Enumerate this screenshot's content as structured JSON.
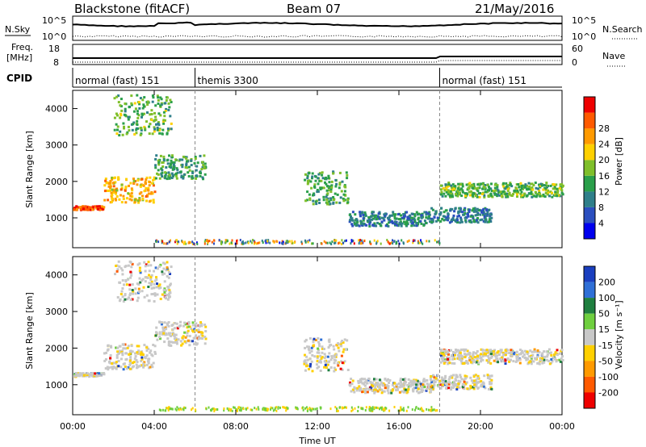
{
  "header": {
    "radar": "Blackstone (fitACF)",
    "beam": "Beam 07",
    "date": "21/May/2016"
  },
  "noise_panel": {
    "left_label": "N.Sky",
    "right_label": "N.Search",
    "left_ticks": [
      "10^5",
      "10^0"
    ],
    "right_ticks": [
      "10^5",
      "10^0"
    ]
  },
  "freq_panel": {
    "left_label_1": "Freq.",
    "left_label_2": "[MHz]",
    "right_label": "Nave",
    "left_ticks": [
      "18",
      "8"
    ],
    "right_ticks": [
      "60",
      "0"
    ]
  },
  "cpid_panel": {
    "label": "CPID",
    "segments": [
      {
        "start_hour": 0,
        "end_hour": 6,
        "label": "normal (fast) 151"
      },
      {
        "start_hour": 6,
        "end_hour": 18,
        "label": "themis 3300"
      },
      {
        "start_hour": 18,
        "end_hour": 24,
        "label": "normal (fast) 151"
      }
    ]
  },
  "power_panel": {
    "ylabel": "Slant Range [km]",
    "colorbar_label": "Power [dB]"
  },
  "velocity_panel": {
    "ylabel": "Slant Range [km]",
    "colorbar_label": "Velocity [m s⁻¹]"
  },
  "xaxis": {
    "title": "Time UT"
  },
  "chart_data": {
    "type": "heatmap",
    "x_range_hours": [
      0,
      24
    ],
    "y_range_km": [
      180,
      4500
    ],
    "x_ticks": [
      "00:00",
      "04:00",
      "08:00",
      "12:00",
      "16:00",
      "20:00",
      "00:00"
    ],
    "y_ticks": [
      "1000",
      "2000",
      "3000",
      "4000"
    ],
    "power_colorbar": {
      "ticks": [
        "4",
        "8",
        "12",
        "16",
        "20",
        "24",
        "28"
      ],
      "colors": [
        "#0000ee",
        "#2b4fbf",
        "#2f7f8a",
        "#2a9f4a",
        "#7fbf2a",
        "#ffd000",
        "#ff9a00",
        "#ff5a00",
        "#ee0000"
      ]
    },
    "velocity_colorbar": {
      "ticks": [
        "200",
        "100",
        "50",
        "15",
        "-15",
        "-50",
        "-100",
        "-200"
      ],
      "colors": [
        "#1a3fbf",
        "#2f6fd6",
        "#1f7f3f",
        "#6fcf3f",
        "#c8c8c8",
        "#ffd000",
        "#ff9a00",
        "#ff5a00",
        "#ee0000"
      ]
    },
    "scatter_bands": [
      {
        "t0": 0.0,
        "t1": 1.5,
        "r0": 1250,
        "r1": 1350,
        "power": 28
      },
      {
        "t0": 1.5,
        "t1": 4.0,
        "r0": 1450,
        "r1": 2150,
        "power": 22
      },
      {
        "t0": 4.0,
        "t1": 6.5,
        "r0": 2100,
        "r1": 2750,
        "power": 12
      },
      {
        "t0": 2.0,
        "t1": 4.8,
        "r0": 3300,
        "r1": 4400,
        "power": 14
      },
      {
        "t0": 11.3,
        "t1": 13.5,
        "r0": 1400,
        "r1": 2300,
        "power": 12
      },
      {
        "t0": 13.5,
        "t1": 17.5,
        "r0": 800,
        "r1": 1200,
        "power": 8
      },
      {
        "t0": 17.5,
        "t1": 20.5,
        "r0": 900,
        "r1": 1300,
        "power": 8
      },
      {
        "t0": 18.0,
        "t1": 24.0,
        "r0": 1600,
        "r1": 2000,
        "power": 14
      }
    ],
    "dashed_lines_hours": [
      6,
      18
    ]
  }
}
